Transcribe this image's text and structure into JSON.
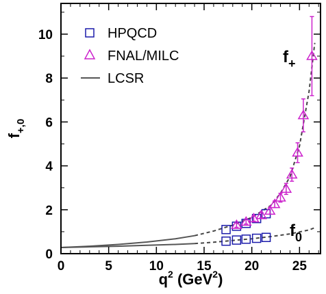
{
  "chart_data": {
    "type": "scatter",
    "xlabel": {
      "main": "q",
      "sup": "2",
      "unit_open": " (GeV",
      "unit_sup": "2",
      "unit_close": ")"
    },
    "ylabel": {
      "main": "f",
      "sub": "+,0"
    },
    "xlim": [
      0,
      27.2
    ],
    "ylim": [
      0,
      11.4
    ],
    "xticks": [
      0,
      5,
      10,
      15,
      20,
      25
    ],
    "yticks": [
      0,
      2,
      4,
      6,
      8,
      10
    ],
    "grid": false,
    "legend_position": "top-left",
    "colors": {
      "hpqcd": "#1a1aaa",
      "fnal": "#cc22cc",
      "lcsr": "#555555",
      "extrap": "#444444"
    },
    "legend": [
      {
        "label": "HPQCD",
        "marker": "square"
      },
      {
        "label": "FNAL/MILC",
        "marker": "triangle"
      },
      {
        "label": "LCSR",
        "marker": "line"
      }
    ],
    "curve_labels": [
      {
        "main": "f",
        "sub": "+"
      },
      {
        "main": "f",
        "sub": "0"
      }
    ],
    "series": [
      {
        "name": "HPQCD",
        "marker": "square",
        "points": [
          {
            "x": 17.3,
            "y": 1.1
          },
          {
            "x": 17.3,
            "y": 0.57
          },
          {
            "x": 18.4,
            "y": 1.25
          },
          {
            "x": 18.4,
            "y": 0.62
          },
          {
            "x": 19.4,
            "y": 1.38
          },
          {
            "x": 19.4,
            "y": 0.66
          },
          {
            "x": 20.5,
            "y": 1.6
          },
          {
            "x": 20.5,
            "y": 0.7
          },
          {
            "x": 21.5,
            "y": 1.82
          },
          {
            "x": 21.5,
            "y": 0.74
          }
        ]
      },
      {
        "name": "FNAL/MILC",
        "marker": "triangle",
        "points": [
          {
            "x": 18.4,
            "y": 1.3,
            "err": 0.1
          },
          {
            "x": 19.4,
            "y": 1.45,
            "err": 0.1
          },
          {
            "x": 20.2,
            "y": 1.6,
            "err": 0.12
          },
          {
            "x": 21.0,
            "y": 1.75,
            "err": 0.12
          },
          {
            "x": 21.9,
            "y": 1.95,
            "err": 0.15
          },
          {
            "x": 22.4,
            "y": 2.25,
            "err": 0.15
          },
          {
            "x": 23.0,
            "y": 2.55,
            "err": 0.2
          },
          {
            "x": 23.6,
            "y": 2.95,
            "err": 0.25
          },
          {
            "x": 24.2,
            "y": 3.6,
            "err": 0.3
          },
          {
            "x": 24.8,
            "y": 4.6,
            "err": 0.45
          },
          {
            "x": 25.4,
            "y": 6.3,
            "err": 0.75
          },
          {
            "x": 26.3,
            "y": 9.0,
            "err": 1.8
          }
        ]
      },
      {
        "name": "LCSR",
        "marker": "line",
        "curves": [
          {
            "x": [
              0,
              3,
              6,
              9,
              12,
              14
            ],
            "y": [
              0.28,
              0.34,
              0.42,
              0.53,
              0.68,
              0.82
            ]
          },
          {
            "x": [
              0,
              3,
              6,
              9,
              12,
              14
            ],
            "y": [
              0.28,
              0.31,
              0.34,
              0.38,
              0.42,
              0.46
            ]
          }
        ]
      },
      {
        "marker": "dashed",
        "curves": [
          {
            "x": [
              14,
              16,
              18,
              20,
              22,
              23,
              24,
              25,
              26,
              26.6
            ],
            "y": [
              0.82,
              1.03,
              1.3,
              1.65,
              2.2,
              2.75,
              3.5,
              4.9,
              7.4,
              9.6
            ]
          },
          {
            "x": [
              14,
              16,
              18,
              20,
              22,
              24,
              26,
              26.6
            ],
            "y": [
              0.46,
              0.52,
              0.6,
              0.68,
              0.78,
              0.9,
              1.08,
              1.18
            ]
          }
        ]
      }
    ]
  }
}
